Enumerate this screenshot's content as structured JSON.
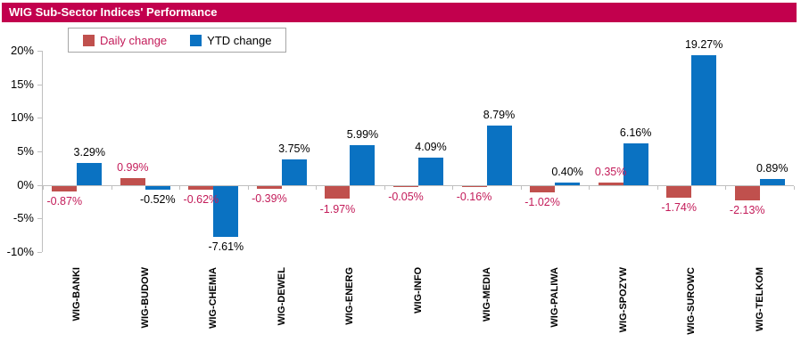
{
  "chart_data": {
    "type": "bar",
    "title": "WIG Sub-Sector Indices' Performance",
    "categories": [
      "WIG-BANKI",
      "WIG-BUDOW",
      "WIG-CHEMIA",
      "WIG-DEWEL",
      "WIG-ENERG",
      "WIG-INFO",
      "WIG-MEDIA",
      "WIG-PALIWA",
      "WIG-SPOZYW",
      "WIG-SUROWC",
      "WIG-TELKOM"
    ],
    "series": [
      {
        "name": "Daily change",
        "color": "#C0504D",
        "label_color": "#C31B59",
        "values": [
          -0.87,
          0.99,
          -0.62,
          -0.39,
          -1.97,
          -0.05,
          -0.16,
          -1.02,
          0.35,
          -1.74,
          -2.13
        ],
        "labels": [
          "-0.87%",
          "0.99%",
          "-0.62%",
          "-0.39%",
          "-1.97%",
          "-0.05%",
          "-0.16%",
          "-1.02%",
          "0.35%",
          "-1.74%",
          "-2.13%"
        ]
      },
      {
        "name": "YTD change",
        "color": "#0A72C2",
        "label_color": "#000000",
        "values": [
          3.29,
          -0.52,
          -7.61,
          3.75,
          5.99,
          4.09,
          8.79,
          0.4,
          6.16,
          19.27,
          0.89
        ],
        "labels": [
          "3.29%",
          "-0.52%",
          "-7.61%",
          "3.75%",
          "5.99%",
          "4.09%",
          "8.79%",
          "0.40%",
          "6.16%",
          "19.27%",
          "0.89%"
        ]
      }
    ],
    "y_axis": {
      "min": -10,
      "max": 20,
      "step": 5,
      "tick_labels": [
        "20%",
        "15%",
        "10%",
        "5%",
        "0%",
        "-5%",
        "-10%"
      ]
    },
    "legend_position": "top-left",
    "grid": false,
    "colors": {
      "title_bg": "#C2004D",
      "axis": "#BFBFBF"
    }
  }
}
